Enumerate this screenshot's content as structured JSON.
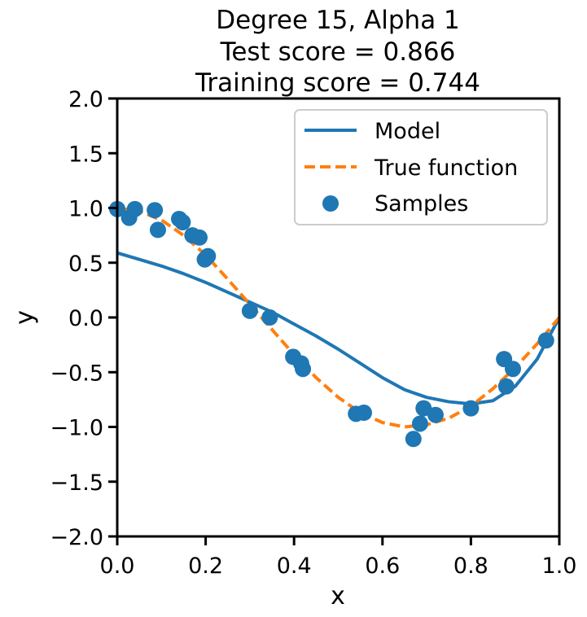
{
  "chart_data": {
    "type": "line",
    "title_lines": [
      "Degree 15, Alpha 1",
      "Test score = 0.866",
      "Training score = 0.744"
    ],
    "xlabel": "x",
    "ylabel": "y",
    "xlim": [
      0.0,
      1.0
    ],
    "ylim": [
      -2.0,
      2.0
    ],
    "x_ticks": [
      0.0,
      0.2,
      0.4,
      0.6,
      0.8,
      1.0
    ],
    "x_tick_labels": [
      "0.0",
      "0.2",
      "0.4",
      "0.6",
      "0.8",
      "1.0"
    ],
    "y_ticks": [
      2.0,
      1.5,
      1.0,
      0.5,
      0.0,
      -0.5,
      -1.0,
      -1.5,
      -2.0
    ],
    "y_tick_labels": [
      "2.0",
      "1.5",
      "1.0",
      "0.5",
      "0.0",
      "−0.5",
      "−1.0",
      "−1.5",
      "−2.0"
    ],
    "legend_position": "top-right",
    "grid": false,
    "series": [
      {
        "name": "Model",
        "kind": "line",
        "style": "solid",
        "color": "#1f77b4",
        "x": [
          0.0,
          0.05,
          0.1,
          0.15,
          0.2,
          0.25,
          0.3,
          0.35,
          0.4,
          0.45,
          0.5,
          0.55,
          0.6,
          0.65,
          0.7,
          0.75,
          0.8,
          0.85,
          0.9,
          0.95,
          1.0
        ],
        "y": [
          0.59,
          0.53,
          0.47,
          0.4,
          0.32,
          0.23,
          0.14,
          0.05,
          -0.06,
          -0.17,
          -0.29,
          -0.42,
          -0.55,
          -0.66,
          -0.73,
          -0.77,
          -0.79,
          -0.76,
          -0.63,
          -0.38,
          0.0
        ]
      },
      {
        "name": "True function",
        "kind": "line",
        "style": "dashed",
        "color": "#ff7f0e",
        "x": [
          0.0,
          0.05,
          0.1,
          0.15,
          0.2,
          0.25,
          0.3,
          0.35,
          0.4,
          0.45,
          0.5,
          0.55,
          0.6,
          0.65,
          0.7,
          0.75,
          0.8,
          0.85,
          0.9,
          0.95,
          1.0
        ],
        "y": [
          1.0,
          0.97,
          0.89,
          0.75,
          0.57,
          0.35,
          0.12,
          -0.11,
          -0.34,
          -0.55,
          -0.73,
          -0.87,
          -0.96,
          -1.0,
          -0.98,
          -0.92,
          -0.81,
          -0.65,
          -0.46,
          -0.24,
          0.0
        ]
      },
      {
        "name": "Samples",
        "kind": "scatter",
        "color": "#1f77b4",
        "x": [
          0.0,
          0.027,
          0.04,
          0.085,
          0.092,
          0.14,
          0.148,
          0.17,
          0.186,
          0.198,
          0.205,
          0.3,
          0.345,
          0.398,
          0.416,
          0.42,
          0.54,
          0.558,
          0.67,
          0.685,
          0.693,
          0.72,
          0.8,
          0.875,
          0.88,
          0.895,
          0.97
        ],
        "y": [
          0.99,
          0.91,
          0.99,
          0.98,
          0.8,
          0.9,
          0.87,
          0.75,
          0.73,
          0.53,
          0.56,
          0.06,
          0.0,
          -0.36,
          -0.42,
          -0.47,
          -0.88,
          -0.87,
          -1.11,
          -0.97,
          -0.83,
          -0.89,
          -0.83,
          -0.38,
          -0.63,
          -0.47,
          -0.21
        ]
      }
    ]
  }
}
